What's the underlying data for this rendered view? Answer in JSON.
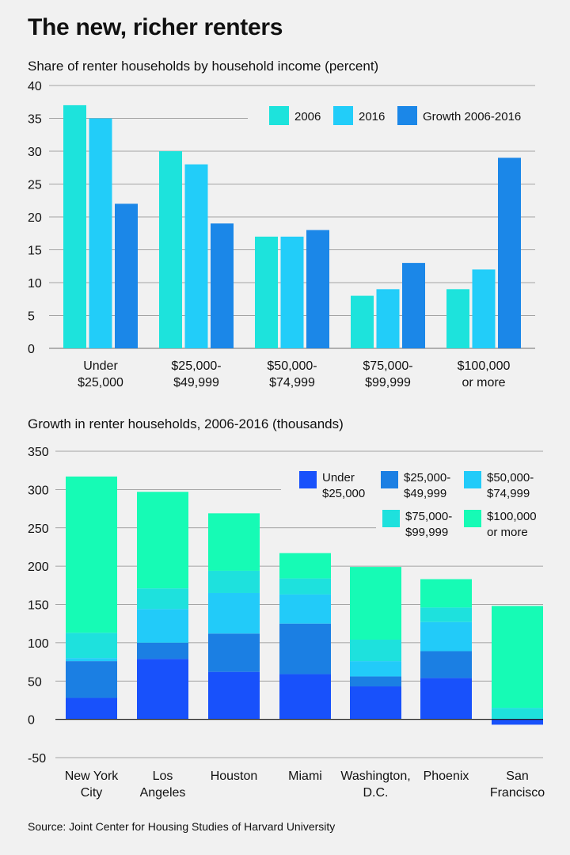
{
  "title": "The new, richer renters",
  "source": "Source: Joint Center for Housing Studies of Harvard University",
  "colors": {
    "s2006": "#1de3dc",
    "s2016": "#22cdf9",
    "growth": "#1b87e8",
    "under25": "#1851fb",
    "r25_50": "#1b7fe3",
    "r50_75": "#22cbf9",
    "r75_100": "#1ee1dd",
    "r100plus": "#16fbb5",
    "grid": "#8a8a8a"
  },
  "chart_data": [
    {
      "type": "bar",
      "title": "Share of renter households by household income (percent)",
      "categories": [
        [
          "Under",
          "$25,000"
        ],
        [
          "$25,000-",
          "$49,999"
        ],
        [
          "$50,000-",
          "$74,999"
        ],
        [
          "$75,000-",
          "$99,999"
        ],
        [
          "$100,000",
          "or more"
        ]
      ],
      "series": [
        {
          "name": "2006",
          "values": [
            37,
            30,
            17,
            8,
            9
          ]
        },
        {
          "name": "2016",
          "values": [
            35,
            28,
            17,
            9,
            12
          ]
        },
        {
          "name": "Growth 2006-2016",
          "values": [
            22,
            19,
            18,
            13,
            29
          ]
        }
      ],
      "ylim": [
        0,
        40
      ],
      "yticks": [
        0,
        5,
        10,
        15,
        20,
        25,
        30,
        35,
        40
      ],
      "grid": true,
      "legend": "top-right"
    },
    {
      "type": "bar",
      "stacked": true,
      "title": "Growth in renter households, 2006-2016 (thousands)",
      "categories": [
        [
          "New York",
          "City"
        ],
        [
          "Los",
          "Angeles"
        ],
        [
          "Houston"
        ],
        [
          "Miami"
        ],
        [
          "Washington,",
          "D.C."
        ],
        [
          "Phoenix"
        ],
        [
          "San",
          "Francisco"
        ]
      ],
      "series": [
        {
          "name": [
            "Under",
            "$25,000"
          ],
          "values": [
            28,
            79,
            62,
            59,
            43,
            54,
            -7
          ]
        },
        {
          "name": [
            "$25,000-",
            "$49,999"
          ],
          "values": [
            48,
            21,
            50,
            66,
            13,
            35,
            0
          ]
        },
        {
          "name": [
            "$50,000-",
            "$74,999"
          ],
          "values": [
            4,
            44,
            53,
            38,
            20,
            38,
            0
          ]
        },
        {
          "name": [
            "$75,000-",
            "$99,999"
          ],
          "values": [
            33,
            27,
            29,
            21,
            28,
            19,
            15
          ]
        },
        {
          "name": [
            "$100,000",
            "or more"
          ],
          "values": [
            204,
            126,
            75,
            33,
            95,
            37,
            133
          ]
        }
      ],
      "ylim": [
        -50,
        350
      ],
      "yticks": [
        -50,
        0,
        50,
        100,
        150,
        200,
        250,
        300,
        350
      ],
      "grid": true,
      "legend": "top-right"
    }
  ]
}
